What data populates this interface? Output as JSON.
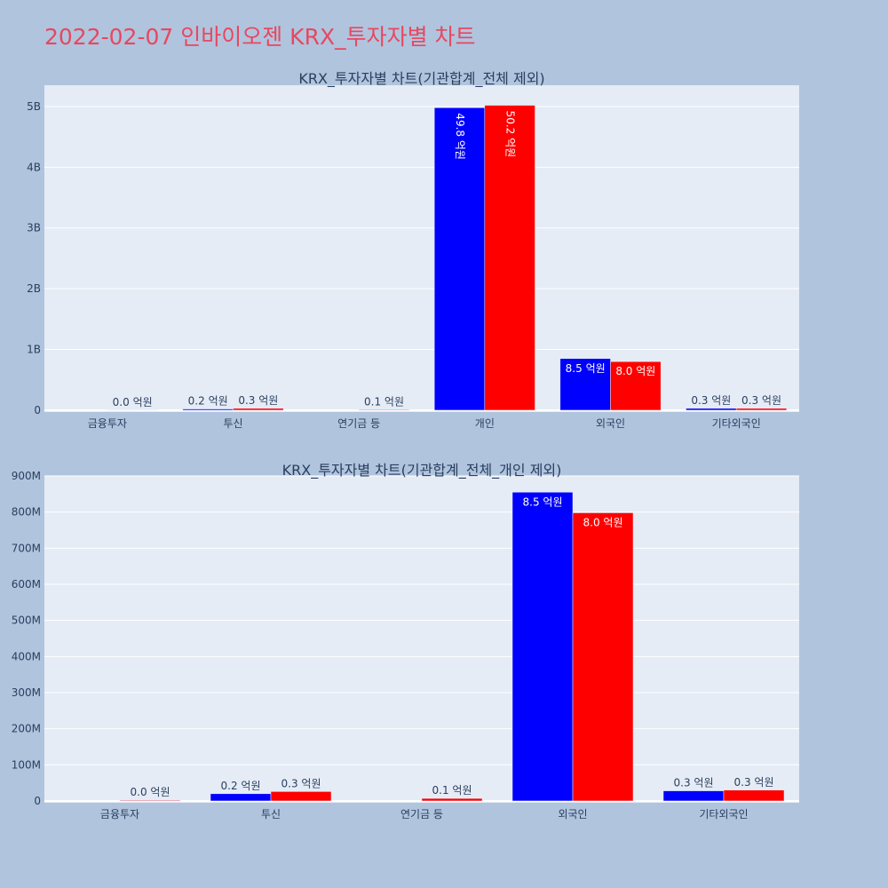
{
  "title": "2022-02-07 인바이오젠 KRX_투자자별 차트",
  "colors": {
    "background": "#b0c4de",
    "plot_bg": "#e5ecf6",
    "grid": "#ffffff",
    "title": "#e8475f",
    "text": "#2a3f5f",
    "series1": "#0000ff",
    "series2": "#ff0000"
  },
  "chart_data": [
    {
      "type": "bar",
      "title": "KRX_투자자별 차트(기관합계_전체 제외)",
      "categories": [
        "금융투자",
        "투신",
        "연기금 등",
        "개인",
        "외국인",
        "기타외국인"
      ],
      "series": [
        {
          "color": "#0000ff",
          "values": [
            0,
            20000000,
            0,
            4980000000,
            850000000,
            30000000
          ],
          "labels": [
            "",
            "0.2 억원",
            "",
            "49.8 억원",
            "8.5 억원",
            "0.3 억원"
          ]
        },
        {
          "color": "#ff0000",
          "values": [
            2000000,
            30000000,
            10000000,
            5020000000,
            800000000,
            30000000
          ],
          "labels": [
            "0.0 억원",
            "0.3 억원",
            "0.1 억원",
            "50.2 억원",
            "8.0 억원",
            "0.3 억원"
          ]
        }
      ],
      "yticks": [
        0,
        1000000000,
        2000000000,
        3000000000,
        4000000000,
        5000000000
      ],
      "yticklabels": [
        "0",
        "1B",
        "2B",
        "3B",
        "4B",
        "5B"
      ],
      "ylim": [
        -30000000,
        5350000000
      ],
      "grid": true,
      "xlabel": "",
      "ylabel": ""
    },
    {
      "type": "bar",
      "title": "KRX_투자자별 차트(기관합계_전체_개인 제외)",
      "categories": [
        "금융투자",
        "투신",
        "연기금 등",
        "외국인",
        "기타외국인"
      ],
      "series": [
        {
          "color": "#0000ff",
          "values": [
            0,
            20000000,
            0,
            855000000,
            28000000
          ],
          "labels": [
            "",
            "0.2 억원",
            "",
            "8.5 억원",
            "0.3 억원"
          ]
        },
        {
          "color": "#ff0000",
          "values": [
            2000000,
            26000000,
            7000000,
            798000000,
            30000000
          ],
          "labels": [
            "0.0 억원",
            "0.3 억원",
            "0.1 억원",
            "8.0 억원",
            "0.3 억원"
          ]
        }
      ],
      "yticks": [
        0,
        100000000,
        200000000,
        300000000,
        400000000,
        500000000,
        600000000,
        700000000,
        800000000,
        900000000
      ],
      "yticklabels": [
        "0",
        "100M",
        "200M",
        "300M",
        "400M",
        "500M",
        "600M",
        "700M",
        "800M",
        "900M"
      ],
      "ylim": [
        -5000000,
        900000000
      ],
      "grid": true,
      "xlabel": "",
      "ylabel": ""
    }
  ]
}
